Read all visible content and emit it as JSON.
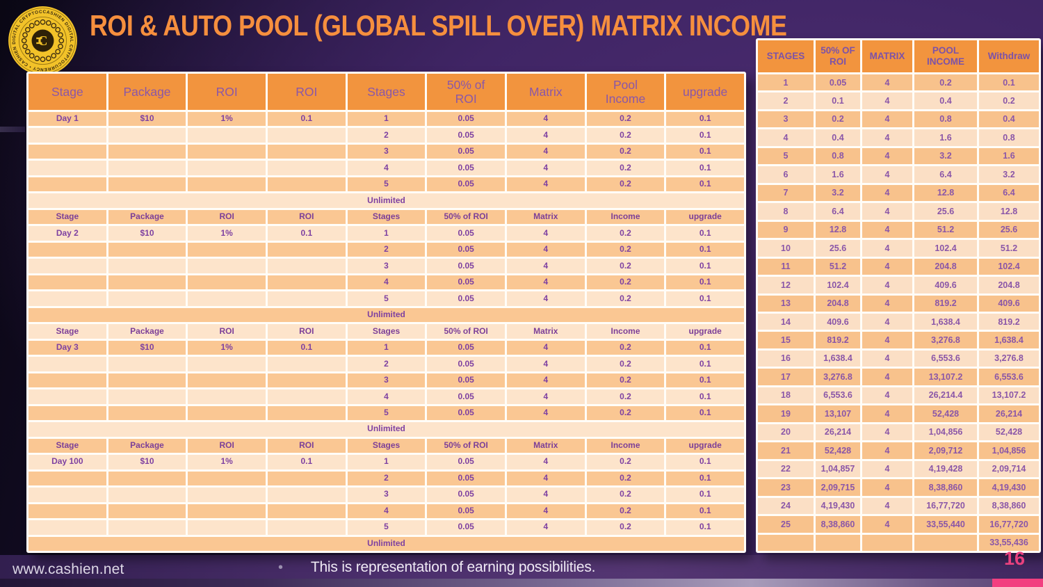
{
  "page": {
    "title": "ROI & AUTO POOL (GLOBAL SPILL OVER) MATRIX INCOME",
    "logo_text": "CASHIEN DIGITAL CRYPTOCURRENCY • CASHIEN DIGITAL CRYPTOCURRENCY •",
    "logo_monogram": "C",
    "website": "www.cashien.net",
    "footnote_bullet": "•",
    "footnote": "This is representation of earning possibilities.",
    "page_number": "16"
  },
  "colors": {
    "title_orange": "#F68F3E",
    "header_orange": "#F2943E",
    "stripe_dark": "#FAC793",
    "stripe_light": "#FDE4CB",
    "text_purple": "#7E41A1",
    "page_number_pink": "#E8417E",
    "bottom_bar_pink": "#F23F80",
    "logo_gold": "#F2C229"
  },
  "main_table": {
    "header": [
      "Stage",
      "Package",
      "ROI",
      "ROI",
      "Stages",
      "50% of\nROI",
      "Matrix",
      "Pool\nIncome",
      "upgrade"
    ],
    "subheader": [
      "Stage",
      "Package",
      "ROI",
      "ROI",
      "Stages",
      "50% of ROI",
      "Matrix",
      "Income",
      "upgrade"
    ],
    "sections": [
      {
        "stage": "Day 1",
        "rows": [
          [
            "Day 1",
            "$10",
            "1%",
            "0.1",
            "1",
            "0.05",
            "4",
            "0.2",
            "0.1"
          ],
          [
            "",
            "",
            "",
            "",
            "2",
            "0.05",
            "4",
            "0.2",
            "0.1"
          ],
          [
            "",
            "",
            "",
            "",
            "3",
            "0.05",
            "4",
            "0.2",
            "0.1"
          ],
          [
            "",
            "",
            "",
            "",
            "4",
            "0.05",
            "4",
            "0.2",
            "0.1"
          ],
          [
            "",
            "",
            "",
            "",
            "5",
            "0.05",
            "4",
            "0.2",
            "0.1"
          ]
        ],
        "footer": "Unlimited"
      },
      {
        "stage": "Day 2",
        "rows": [
          [
            "Day 2",
            "$10",
            "1%",
            "0.1",
            "1",
            "0.05",
            "4",
            "0.2",
            "0.1"
          ],
          [
            "",
            "",
            "",
            "",
            "2",
            "0.05",
            "4",
            "0.2",
            "0.1"
          ],
          [
            "",
            "",
            "",
            "",
            "3",
            "0.05",
            "4",
            "0.2",
            "0.1"
          ],
          [
            "",
            "",
            "",
            "",
            "4",
            "0.05",
            "4",
            "0.2",
            "0.1"
          ],
          [
            "",
            "",
            "",
            "",
            "5",
            "0.05",
            "4",
            "0.2",
            "0.1"
          ]
        ],
        "footer": "Unlimited"
      },
      {
        "stage": "Day 3",
        "rows": [
          [
            "Day 3",
            "$10",
            "1%",
            "0.1",
            "1",
            "0.05",
            "4",
            "0.2",
            "0.1"
          ],
          [
            "",
            "",
            "",
            "",
            "2",
            "0.05",
            "4",
            "0.2",
            "0.1"
          ],
          [
            "",
            "",
            "",
            "",
            "3",
            "0.05",
            "4",
            "0.2",
            "0.1"
          ],
          [
            "",
            "",
            "",
            "",
            "4",
            "0.05",
            "4",
            "0.2",
            "0.1"
          ],
          [
            "",
            "",
            "",
            "",
            "5",
            "0.05",
            "4",
            "0.2",
            "0.1"
          ]
        ],
        "footer": "Unlimited"
      },
      {
        "stage": "Day 100",
        "rows": [
          [
            "Day 100",
            "$10",
            "1%",
            "0.1",
            "1",
            "0.05",
            "4",
            "0.2",
            "0.1"
          ],
          [
            "",
            "",
            "",
            "",
            "2",
            "0.05",
            "4",
            "0.2",
            "0.1"
          ],
          [
            "",
            "",
            "",
            "",
            "3",
            "0.05",
            "4",
            "0.2",
            "0.1"
          ],
          [
            "",
            "",
            "",
            "",
            "4",
            "0.05",
            "4",
            "0.2",
            "0.1"
          ],
          [
            "",
            "",
            "",
            "",
            "5",
            "0.05",
            "4",
            "0.2",
            "0.1"
          ]
        ],
        "footer": "Unlimited"
      }
    ]
  },
  "side_table": {
    "header": [
      "STAGES",
      "50% OF\nROI",
      "MATRIX",
      "POOL\nINCOME",
      "Withdraw"
    ],
    "rows": [
      [
        "1",
        "0.05",
        "4",
        "0.2",
        "0.1"
      ],
      [
        "2",
        "0.1",
        "4",
        "0.4",
        "0.2"
      ],
      [
        "3",
        "0.2",
        "4",
        "0.8",
        "0.4"
      ],
      [
        "4",
        "0.4",
        "4",
        "1.6",
        "0.8"
      ],
      [
        "5",
        "0.8",
        "4",
        "3.2",
        "1.6"
      ],
      [
        "6",
        "1.6",
        "4",
        "6.4",
        "3.2"
      ],
      [
        "7",
        "3.2",
        "4",
        "12.8",
        "6.4"
      ],
      [
        "8",
        "6.4",
        "4",
        "25.6",
        "12.8"
      ],
      [
        "9",
        "12.8",
        "4",
        "51.2",
        "25.6"
      ],
      [
        "10",
        "25.6",
        "4",
        "102.4",
        "51.2"
      ],
      [
        "11",
        "51.2",
        "4",
        "204.8",
        "102.4"
      ],
      [
        "12",
        "102.4",
        "4",
        "409.6",
        "204.8"
      ],
      [
        "13",
        "204.8",
        "4",
        "819.2",
        "409.6"
      ],
      [
        "14",
        "409.6",
        "4",
        "1,638.4",
        "819.2"
      ],
      [
        "15",
        "819.2",
        "4",
        "3,276.8",
        "1,638.4"
      ],
      [
        "16",
        "1,638.4",
        "4",
        "6,553.6",
        "3,276.8"
      ],
      [
        "17",
        "3,276.8",
        "4",
        "13,107.2",
        "6,553.6"
      ],
      [
        "18",
        "6,553.6",
        "4",
        "26,214.4",
        "13,107.2"
      ],
      [
        "19",
        "13,107",
        "4",
        "52,428",
        "26,214"
      ],
      [
        "20",
        "26,214",
        "4",
        "1,04,856",
        "52,428"
      ],
      [
        "21",
        "52,428",
        "4",
        "2,09,712",
        "1,04,856"
      ],
      [
        "22",
        "1,04,857",
        "4",
        "4,19,428",
        "2,09,714"
      ],
      [
        "23",
        "2,09,715",
        "4",
        "8,38,860",
        "4,19,430"
      ],
      [
        "24",
        "4,19,430",
        "4",
        "16,77,720",
        "8,38,860"
      ],
      [
        "25",
        "8,38,860",
        "4",
        "33,55,440",
        "16,77,720"
      ]
    ],
    "total_row": [
      "",
      "",
      "",
      "",
      "33,55,436"
    ]
  }
}
